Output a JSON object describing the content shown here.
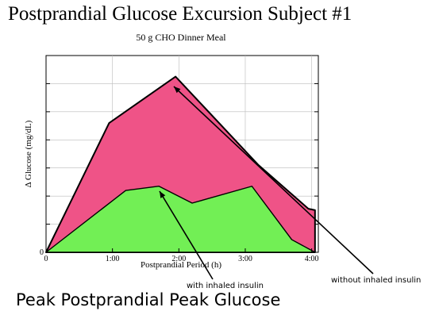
{
  "slide": {
    "title": "Postprandial Glucose Excursion Subject #1",
    "caption": "Peak Postprandial Peak Glucose"
  },
  "annotations": {
    "with_label": "with inhaled insulin",
    "without_label": "without inhaled insulin"
  },
  "colors": {
    "without_fill": "#ef5387",
    "with_fill": "#72ef55",
    "outline": "#000000",
    "grid": "#bbbbbb"
  },
  "chart_data": {
    "type": "area",
    "title": "50 g CHO Dinner Meal",
    "xlabel": "Postprandial Period (h)",
    "ylabel": "Δ Glucose (mg/dL)",
    "xlim": [
      0,
      4.1
    ],
    "ylim": [
      0,
      7
    ],
    "x_tick_values": [
      0,
      1,
      2,
      3,
      4
    ],
    "x_tick_labels": [
      "0",
      "1:00",
      "2:00",
      "3:00",
      "4:00"
    ],
    "y_tick_values": [
      0,
      1,
      2,
      3,
      4,
      5,
      6,
      7
    ],
    "y_tick_labels": [
      "0",
      "",
      "",
      "",
      "",
      "",
      "",
      ""
    ],
    "grid": true,
    "series": [
      {
        "key": "without",
        "x": [
          0,
          0.95,
          1.95,
          3.2,
          3.95,
          4.05,
          4.05
        ],
        "y": [
          0,
          4.6,
          6.25,
          3.1,
          1.55,
          1.5,
          0
        ]
      },
      {
        "key": "with",
        "x": [
          0,
          1.2,
          1.7,
          2.2,
          3.1,
          3.7,
          4.05
        ],
        "y": [
          0,
          2.2,
          2.35,
          1.75,
          2.35,
          0.45,
          0
        ]
      }
    ]
  }
}
